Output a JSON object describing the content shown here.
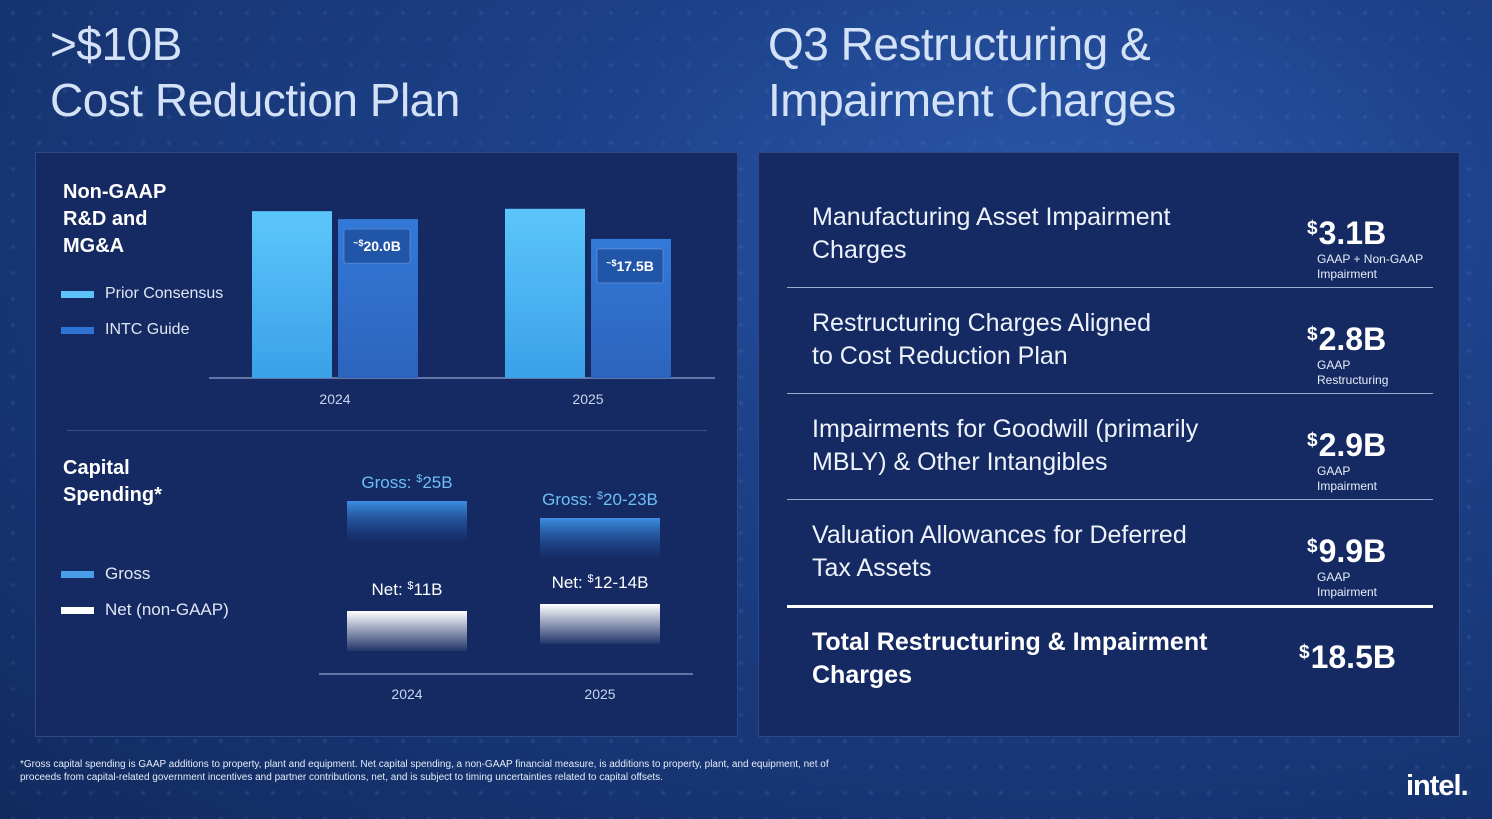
{
  "titles": {
    "left_line1": ">$10B",
    "left_line2": "Cost Reduction Plan",
    "right_line1": "Q3 Restructuring &",
    "right_line2": "Impairment Charges"
  },
  "colors": {
    "prior_consensus": "#5cc1f7",
    "intc_guide": "#2f73d3",
    "gross": "#4a9de8",
    "net": "#ffffff",
    "panel": "#152a62",
    "background": "#1c4088"
  },
  "chart_data": [
    {
      "type": "bar",
      "title": "Non-GAAP R&D and MG&A",
      "title_lines": [
        "Non-GAAP",
        "R&D and",
        "MG&A"
      ],
      "categories": [
        "2024",
        "2025"
      ],
      "series": [
        {
          "name": "Prior Consensus",
          "values": [
            21.0,
            21.3
          ]
        },
        {
          "name": "INTC Guide",
          "values": [
            20.0,
            17.5
          ]
        }
      ],
      "data_labels": [
        {
          "prefix": "~$",
          "text": "20.0B"
        },
        {
          "prefix": "~$",
          "text": "17.5B"
        }
      ],
      "legend": "left",
      "ylim": [
        0,
        22
      ]
    },
    {
      "type": "bar",
      "title": "Capital Spending*",
      "title_lines": [
        "Capital",
        "Spending*"
      ],
      "categories": [
        "2024",
        "2025"
      ],
      "series": [
        {
          "name": "Gross",
          "values": [
            25,
            21.5
          ],
          "labels": [
            {
              "pre": "Gross: ",
              "sup": "$",
              "post": "25B"
            },
            {
              "pre": "Gross: ",
              "sup": "$",
              "post": "20-23B"
            }
          ]
        },
        {
          "name": "Net (non-GAAP)",
          "values": [
            11,
            13
          ],
          "labels": [
            {
              "pre": "Net: ",
              "sup": "$",
              "post": "11B"
            },
            {
              "pre": "Net: ",
              "sup": "$",
              "post": "12-14B"
            }
          ]
        }
      ],
      "legend": "left"
    }
  ],
  "charges": {
    "rows": [
      {
        "label_lines": [
          "Manufacturing Asset Impairment",
          "Charges"
        ],
        "currency": "$",
        "amount": "3.1B",
        "sub_lines": [
          "GAAP + Non-GAAP",
          "Impairment"
        ]
      },
      {
        "label_lines": [
          "Restructuring Charges Aligned",
          "to Cost Reduction Plan"
        ],
        "currency": "$",
        "amount": "2.8B",
        "sub_lines": [
          "GAAP",
          "Restructuring"
        ]
      },
      {
        "label_lines": [
          "Impairments for Goodwill (primarily",
          "MBLY) & Other Intangibles"
        ],
        "currency": "$",
        "amount": "2.9B",
        "sub_lines": [
          "GAAP",
          "Impairment"
        ]
      },
      {
        "label_lines": [
          "Valuation Allowances for Deferred",
          "Tax Assets"
        ],
        "currency": "$",
        "amount": "9.9B",
        "sub_lines": [
          "GAAP",
          "Impairment"
        ]
      }
    ],
    "total": {
      "label_lines": [
        "Total Restructuring & Impairment",
        "Charges"
      ],
      "currency": "$",
      "amount": "18.5B"
    }
  },
  "footnote": "*Gross capital spending is GAAP additions to property, plant and equipment. Net capital spending, a non-GAAP financial measure, is additions to property, plant, and equipment, net of proceeds from capital-related government incentives and partner contributions, net, and is subject to timing uncertainties related to capital offsets.",
  "logo": "intel."
}
